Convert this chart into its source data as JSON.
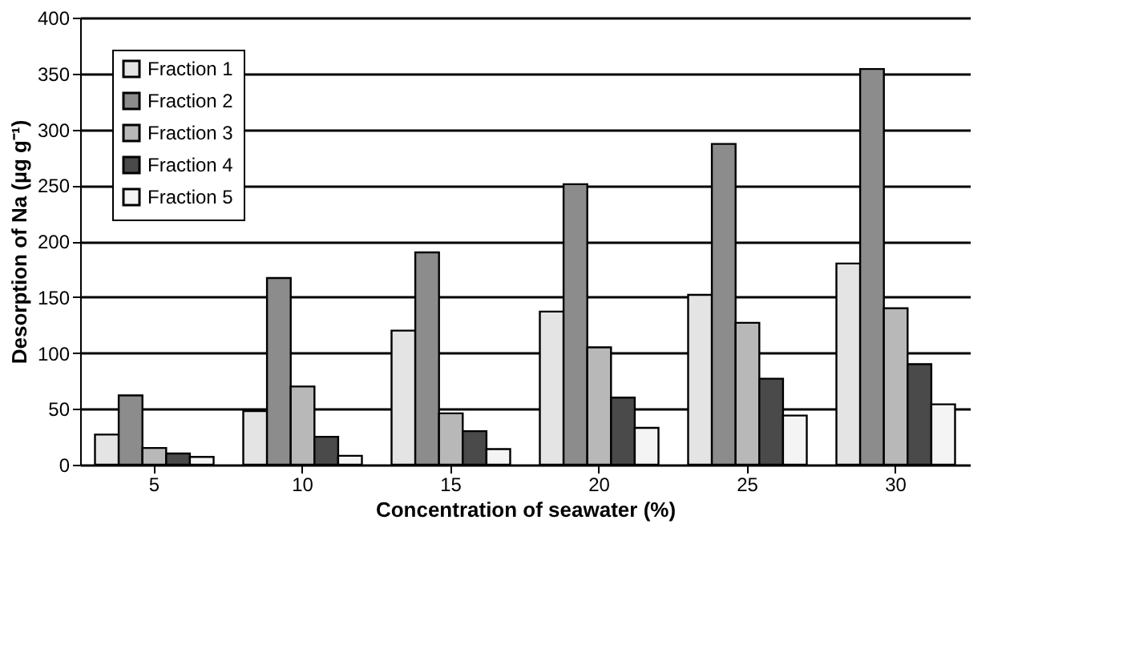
{
  "chart_data": {
    "type": "bar",
    "xlabel": "Concentration of seawater (%)",
    "ylabel": "Desorption of Na (µg g⁻¹)",
    "categories": [
      "5",
      "10",
      "15",
      "20",
      "25",
      "30"
    ],
    "series": [
      {
        "name": "Fraction 1",
        "color": "#e4e4e4",
        "values": [
          27,
          48,
          120,
          137,
          152,
          180
        ]
      },
      {
        "name": "Fraction 2",
        "color": "#8c8c8c",
        "values": [
          62,
          167,
          190,
          251,
          287,
          354
        ]
      },
      {
        "name": "Fraction 3",
        "color": "#b8b8b8",
        "values": [
          15,
          70,
          46,
          105,
          127,
          140
        ]
      },
      {
        "name": "Fraction 4",
        "color": "#4a4a4a",
        "values": [
          10,
          25,
          30,
          60,
          77,
          90
        ]
      },
      {
        "name": "Fraction 5",
        "color": "#f4f4f4",
        "values": [
          7,
          8,
          14,
          33,
          44,
          54
        ]
      }
    ],
    "ylim": [
      0,
      400
    ],
    "yticks": [
      0,
      50,
      100,
      150,
      200,
      250,
      300,
      350,
      400
    ],
    "grid": "y",
    "legend": "top left"
  }
}
